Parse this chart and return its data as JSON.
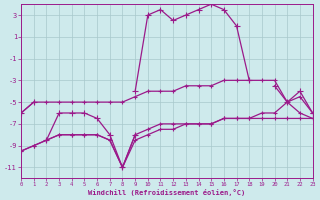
{
  "x": [
    0,
    1,
    2,
    3,
    4,
    5,
    6,
    7,
    8,
    9,
    10,
    11,
    12,
    13,
    14,
    15,
    16,
    17,
    18,
    19,
    20,
    21,
    22,
    23
  ],
  "series_main": [
    -6,
    -5,
    null,
    null,
    null,
    null,
    null,
    null,
    null,
    -4,
    3,
    3.5,
    2.5,
    3,
    3.5,
    4,
    3.5,
    2,
    -3,
    null,
    null,
    null,
    null,
    -6
  ],
  "series_zigzag": [
    null,
    null,
    -8.5,
    -6,
    -6,
    -6,
    -6.5,
    -8,
    -11,
    -8,
    null,
    null,
    null,
    null,
    null,
    null,
    null,
    null,
    null,
    null,
    -3.5,
    -5,
    -4,
    -6
  ],
  "series_upper_slope": [
    -6,
    -5,
    -5,
    -5,
    -5,
    -5,
    -5,
    -5,
    -5,
    -4.5,
    -4,
    -4,
    -4,
    -3.5,
    -3.5,
    -3.5,
    -3,
    -3,
    -3,
    -3,
    -3,
    -5,
    -4.5,
    -6
  ],
  "series_lower_slope": [
    -9.5,
    -9,
    -8.5,
    -8,
    -8,
    -8,
    -8,
    -8.5,
    -11,
    -8.5,
    -8,
    -7.5,
    -7.5,
    -7,
    -7,
    -7,
    -6.5,
    -6.5,
    -6.5,
    -6.5,
    -6.5,
    -6.5,
    -6.5,
    -6.5
  ],
  "series_lower_slope2": [
    -9.5,
    -9,
    -8.5,
    -8,
    -8,
    -8,
    -8,
    -8.5,
    -11,
    -8,
    -7.5,
    -7,
    -7,
    -7,
    -7,
    -7,
    -6.5,
    -6.5,
    -6.5,
    -6,
    -6,
    -5,
    -6,
    -6.5
  ],
  "xlabel": "Windchill (Refroidissement éolien,°C)",
  "ylim": [
    -12,
    4
  ],
  "xlim": [
    0,
    23
  ],
  "bg_color": "#ceeaec",
  "line_color": "#9b1a8a",
  "grid_color": "#a8c8cc",
  "yticks": [
    3,
    1,
    -1,
    -3,
    -5,
    -7,
    -9,
    -11
  ],
  "xticks": [
    0,
    1,
    2,
    3,
    4,
    5,
    6,
    7,
    8,
    9,
    10,
    11,
    12,
    13,
    14,
    15,
    16,
    17,
    18,
    19,
    20,
    21,
    22,
    23
  ]
}
